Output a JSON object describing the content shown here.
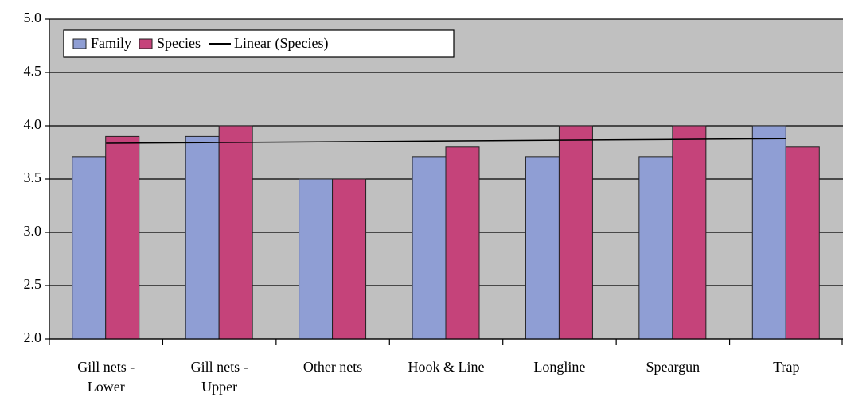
{
  "chart_data": {
    "type": "bar",
    "categories": [
      [
        "Gill nets -",
        "Lower"
      ],
      [
        "Gill nets -",
        "Upper"
      ],
      [
        "Other nets"
      ],
      [
        "Hook & Line"
      ],
      [
        "Longline"
      ],
      [
        "Speargun"
      ],
      [
        "Trap"
      ]
    ],
    "series": [
      {
        "name": "Family",
        "color": "#8f9ed4",
        "values": [
          3.71,
          3.9,
          3.5,
          3.71,
          3.71,
          3.71,
          4.0
        ]
      },
      {
        "name": "Species",
        "color": "#c5437a",
        "values": [
          3.9,
          4.0,
          3.5,
          3.8,
          4.0,
          4.0,
          3.8
        ]
      }
    ],
    "trendline": {
      "name": "Linear (Species)",
      "series": 1,
      "color": "#000000"
    },
    "ylim": [
      2.0,
      5.0
    ],
    "yticks": [
      {
        "value": 2,
        "label": "2.0"
      },
      2.5,
      {
        "value": 3,
        "label": "3.0"
      },
      3.5,
      {
        "value": 4,
        "label": "4.0"
      },
      4.5,
      {
        "value": 5,
        "label": "5.0"
      }
    ],
    "grid": true,
    "plot_background": "#c0c0c0",
    "legend": "top-left"
  }
}
